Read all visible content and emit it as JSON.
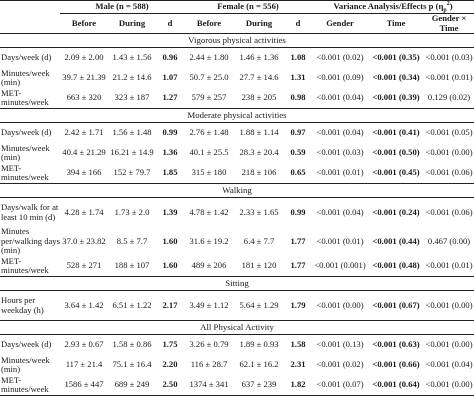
{
  "header": {
    "male": "Male (n = 588)",
    "female": "Female (n = 556)",
    "variance": "Variance Analysis/Effects p (η",
    "variance_sub": "p",
    "variance_sup": "2",
    "variance_close": ")",
    "cols": [
      "Before",
      "During",
      "d",
      "Before",
      "During",
      "d",
      "Gender",
      "Time",
      "Gender × Time"
    ]
  },
  "sections": [
    {
      "title": "Vigorous physical activities",
      "rows": [
        {
          "label": "Days/week (d)",
          "h": "h2",
          "cells": [
            "2.09 ± 2.00",
            "1.43 ± 1.56",
            "0.96",
            "2.44 ± 1.80",
            "1.46 ± 1.36",
            "1.08",
            "<0.001 (0.02)",
            "<0.001 (0.35)",
            "<0.001 (0.03)"
          ]
        },
        {
          "label": "Minutes/week (min)",
          "h": "h2",
          "cells": [
            "39.7 ± 21.39",
            "21.2 ± 14.6",
            "1.07",
            "50.7 ± 25.0",
            "27.7 ± 14.6",
            "1.31",
            "<0.001 (0.09)",
            "<0.001 (0.34)",
            "<0.001 (0.01)"
          ]
        },
        {
          "label": "MET-minutes/week",
          "h": "h2",
          "cells": [
            "663 ± 320",
            "323 ± 187",
            "1.27",
            "579 ± 257",
            "238 ± 205",
            "0.98",
            "<0.001 (0.04)",
            "<0.001 (0.39)",
            "0.129 (0.02)"
          ]
        }
      ]
    },
    {
      "title": "Moderate physical activities",
      "rows": [
        {
          "label": "Days/week (d)",
          "h": "h2",
          "cells": [
            "2.42 ± 1.71",
            "1.56 ± 1.48",
            "0.99",
            "2.76 ± 1.48",
            "1.88 ± 1.14",
            "0.97",
            "<0.001 (0.04)",
            "<0.001 (0.41)",
            "<0.001 (0.05)"
          ]
        },
        {
          "label": "Minutes/week (min)",
          "h": "h2",
          "cells": [
            "40.4 ± 21.29",
            "16.21 ± 14.9",
            "1.36",
            "40.1 ± 25.5",
            "28.3 ± 20.4",
            "0.59",
            "<0.001 (0.03)",
            "<0.001 (0.50)",
            "<0.001 (0.00)"
          ]
        },
        {
          "label": "MET-minutes/week",
          "h": "h2",
          "cells": [
            "394 ± 166",
            "152 ± 79.7",
            "1.85",
            "315 ± 180",
            "218 ± 106",
            "0.65",
            "<0.001 (0.01)",
            "<0.001 (0.45)",
            "<0.001 (0.06)"
          ]
        }
      ]
    },
    {
      "title": "Walking",
      "rows": [
        {
          "label": "Days/walk for at least 10 min (d)",
          "h": "h3",
          "cells": [
            "4.28 ± 1.74",
            "1.73 ± 2.0",
            "1.39",
            "4.78 ± 1.42",
            "2.33 ± 1.65",
            "0.99",
            "<0.001 (0.04)",
            "<0.001 (0.24)",
            "<0.001 (0.06)"
          ]
        },
        {
          "label": "Minutes per/walking days (min)",
          "h": "h3",
          "cells": [
            "37.0 ± 23.82",
            "8.5 ± 7.7",
            "1.60",
            "31.6 ± 19.2",
            "6.4 ± 7.7",
            "1.77",
            "<0.001 (0.01)",
            "<0.001 (0.44)",
            "0.467 (0.00)"
          ]
        },
        {
          "label": "MET-minutes/week",
          "h": "h2",
          "cells": [
            "528 ± 271",
            "188 ± 107",
            "1.60",
            "489 ± 206",
            "181 ± 120",
            "1.77",
            "<0.001 (0.001)",
            "<0.001 (0.48)",
            "<0.001 (0.01)"
          ]
        }
      ]
    },
    {
      "title": "Sitting",
      "rows": [
        {
          "label": "Hours per weekday (h)",
          "h": "h3",
          "cells": [
            "3.64 ± 1.42",
            "6.51 ± 1.22",
            "2.17",
            "3.49 ± 1.12",
            "5.64 ± 1.29",
            "1.79",
            "<0.001 (0.00)",
            "<0.001 (0.67)",
            "<0.001 (0.00)"
          ]
        }
      ]
    },
    {
      "title": "All Physical Activity",
      "rows": [
        {
          "label": "Days/week (d)",
          "h": "h2",
          "cells": [
            "2.93 ± 0.67",
            "1.58 ± 0.86",
            "1.75",
            "3.26 ± 0.79",
            "1.89 ± 0.93",
            "1.58",
            "<0.001 (0.13)",
            "<0.001 (0.63)",
            "<0.001 (0.00)"
          ]
        },
        {
          "label": "Minutes/week (min)",
          "h": "h2",
          "cells": [
            "117 ± 21.4",
            "75.1 ± 16.4",
            "2.20",
            "116 ± 28.7",
            "62.1 ± 16.2",
            "2.31",
            "<0.001 (0.02)",
            "<0.001 (0.66)",
            "<0.001 (0.04)"
          ]
        },
        {
          "label": "MET-minutes/week",
          "h": "h2",
          "cells": [
            "1586 ± 447",
            "689 ± 249",
            "2.50",
            "1374 ± 341",
            "637 ± 239",
            "1.82",
            "<0.001 (0.07)",
            "<0.001 (0.64)",
            "<0.001 (0.00)"
          ]
        }
      ]
    }
  ],
  "bold_cols": [
    2,
    5,
    7
  ]
}
